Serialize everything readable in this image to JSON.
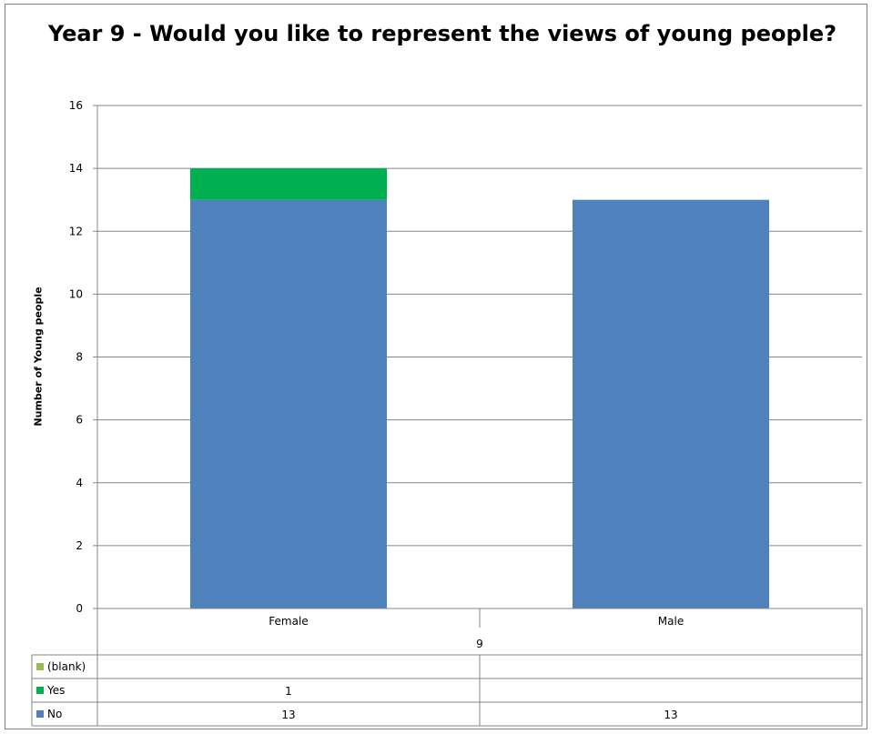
{
  "chart_data": {
    "type": "bar",
    "stacked": true,
    "title": "Year 9 - Would you like to represent the views of young people?",
    "ylabel": "Number of Young people",
    "xlabel": "",
    "ylim": [
      0,
      16
    ],
    "yticks": [
      0,
      2,
      4,
      6,
      8,
      10,
      12,
      14,
      16
    ],
    "categories": [
      "Female",
      "Male"
    ],
    "group_label": "9",
    "series": [
      {
        "name": "(blank)",
        "color": "#9bbb59",
        "values": [
          null,
          null
        ],
        "display": [
          "",
          ""
        ]
      },
      {
        "name": "Yes",
        "color": "#00b050",
        "values": [
          1,
          0
        ],
        "display": [
          "1",
          ""
        ]
      },
      {
        "name": "No",
        "color": "#4f81bd",
        "values": [
          13,
          13
        ],
        "display": [
          "13",
          "13"
        ]
      }
    ],
    "grid": true,
    "legend": "data-table"
  }
}
